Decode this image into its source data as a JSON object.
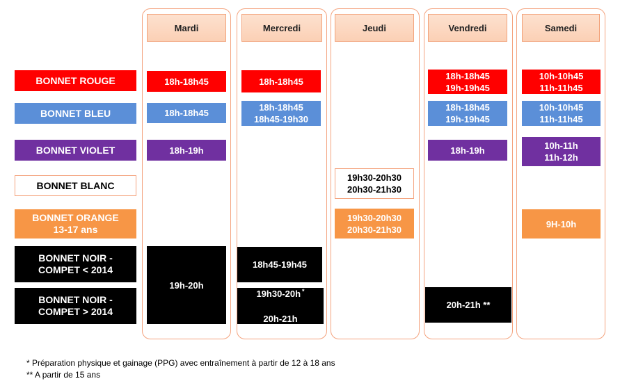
{
  "days": [
    "Mardi",
    "Mercredi",
    "Jeudi",
    "Vendredi",
    "Samedi"
  ],
  "groups": {
    "rouge": "BONNET ROUGE",
    "bleu": "BONNET BLEU",
    "violet": "BONNET VIOLET",
    "blanc": "BONNET BLANC",
    "orange": "BONNET ORANGE\n13-17 ans",
    "noir1": "BONNET NOIR -\nCOMPET < 2014",
    "noir2": "BONNET NOIR -\nCOMPET > 2014"
  },
  "sessions": {
    "mardi_rouge": "18h-18h45",
    "mardi_bleu": "18h-18h45",
    "mardi_violet": "18h-19h",
    "mardi_noir": "19h-20h",
    "mercredi_rouge": "18h-18h45",
    "mercredi_bleu": "18h-18h45\n18h45-19h30",
    "mercredi_noir1": "18h45-19h45",
    "mercredi_noir2_line1": "19h30-20h",
    "mercredi_noir2_mark": "*",
    "mercredi_noir2_line2": "20h-21h",
    "jeudi_blanc": "19h30-20h30\n20h30-21h30",
    "jeudi_orange": "19h30-20h30\n20h30-21h30",
    "vendredi_rouge": "18h-18h45\n19h-19h45",
    "vendredi_bleu": "18h-18h45\n19h-19h45",
    "vendredi_violet": "18h-19h",
    "vendredi_noir2": "20h-21h **",
    "samedi_rouge": "10h-10h45\n11h-11h45",
    "samedi_bleu": "10h-10h45\n11h-11h45",
    "samedi_violet": "10h-11h\n11h-12h",
    "samedi_orange": "9H-10h"
  },
  "footnotes": [
    "* Préparation physique et gainage (PPG)  avec entraînement à partir de 12 à 18 ans",
    "** A partir de 15 ans"
  ],
  "colors": {
    "rouge": "#ff0000",
    "bleu": "#5b8fd8",
    "violet": "#7030a0",
    "orange": "#f79646",
    "noir": "#000000",
    "column_border": "#f4a37e"
  }
}
